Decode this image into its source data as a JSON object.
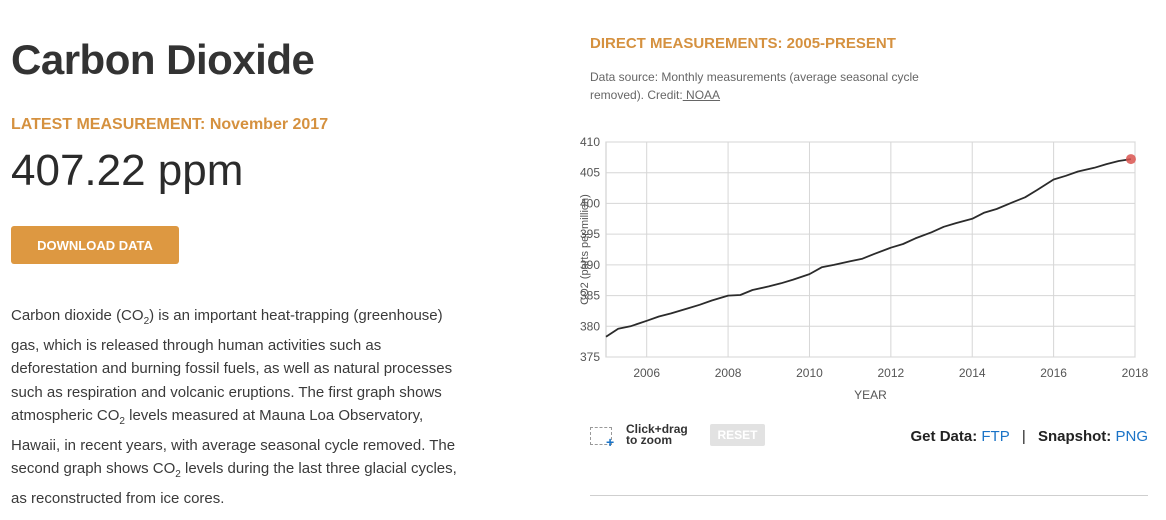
{
  "left": {
    "title": "Carbon Dioxide",
    "latest_label": "LATEST MEASUREMENT: November 2017",
    "latest_value": "407.22 ppm",
    "download_label": "DOWNLOAD DATA",
    "desc": {
      "p1": "Carbon dioxide (CO",
      "sub1": "2",
      "p2": ") is an important heat-trapping (greenhouse) gas, which is released through human activities such as deforestation and burning fossil fuels, as well as natural processes such as respiration and volcanic eruptions. The first graph shows atmospheric CO",
      "sub2": "2",
      "p3": " levels measured at Mauna Loa Observatory, Hawaii, in recent years, with average seasonal cycle removed. The second graph shows CO",
      "sub3": "2",
      "p4": " levels during the last three glacial cycles, as reconstructed from ice cores."
    }
  },
  "right": {
    "title": "DIRECT MEASUREMENTS: 2005-PRESENT",
    "source_text": "Data source: Monthly measurements (average seasonal cycle removed). Credit:",
    "source_link": " NOAA",
    "zoom_text_1": "Click+drag",
    "zoom_text_2": "to zoom",
    "reset_label": "RESET",
    "get_data_label": "Get Data:",
    "ftp_label": "FTP",
    "separator": "|",
    "snapshot_label": "Snapshot:",
    "png_label": "PNG"
  },
  "chart_data": {
    "type": "line",
    "title": "",
    "xlabel": "YEAR",
    "ylabel": "CO2 (parts per million)",
    "xlim": [
      2005,
      2018
    ],
    "ylim": [
      375,
      410
    ],
    "x_ticks": [
      "2006",
      "2008",
      "2010",
      "2012",
      "2014",
      "2016",
      "2018"
    ],
    "y_ticks": [
      "375",
      "380",
      "385",
      "390",
      "395",
      "400",
      "405",
      "410"
    ],
    "grid": true,
    "line_color": "#2b2b2b",
    "marker_color": "#d9534f",
    "series": [
      {
        "x": [
          2005.0,
          2005.3,
          2005.6,
          2006.0,
          2006.3,
          2006.6,
          2007.0,
          2007.3,
          2007.6,
          2008.0,
          2008.3,
          2008.6,
          2009.0,
          2009.3,
          2009.6,
          2010.0,
          2010.3,
          2010.6,
          2011.0,
          2011.3,
          2011.6,
          2012.0,
          2012.3,
          2012.6,
          2013.0,
          2013.3,
          2013.6,
          2014.0,
          2014.3,
          2014.6,
          2015.0,
          2015.3,
          2015.6,
          2016.0,
          2016.3,
          2016.6,
          2017.0,
          2017.3,
          2017.6,
          2017.9
        ],
        "y": [
          378.3,
          379.6,
          380.0,
          380.9,
          381.6,
          382.1,
          382.9,
          383.5,
          384.2,
          385.0,
          385.1,
          385.9,
          386.5,
          387.0,
          387.6,
          388.5,
          389.6,
          390.0,
          390.6,
          391.0,
          391.8,
          392.8,
          393.4,
          394.3,
          395.3,
          396.2,
          396.8,
          397.5,
          398.5,
          399.1,
          400.2,
          401.0,
          402.2,
          403.9,
          404.5,
          405.2,
          405.8,
          406.4,
          406.9,
          407.22
        ]
      }
    ]
  }
}
